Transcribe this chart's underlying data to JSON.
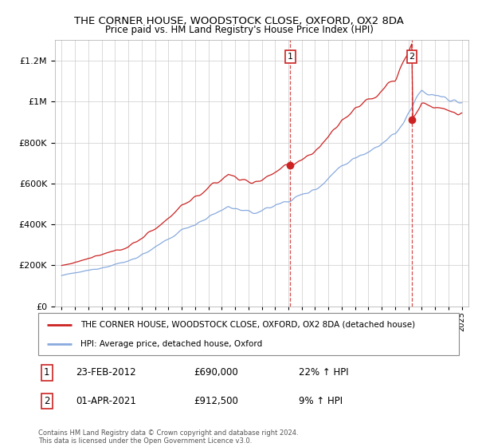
{
  "title": "THE CORNER HOUSE, WOODSTOCK CLOSE, OXFORD, OX2 8DA",
  "subtitle": "Price paid vs. HM Land Registry's House Price Index (HPI)",
  "legend_label_red": "THE CORNER HOUSE, WOODSTOCK CLOSE, OXFORD, OX2 8DA (detached house)",
  "legend_label_blue": "HPI: Average price, detached house, Oxford",
  "annotation1_date": "23-FEB-2012",
  "annotation1_price": "£690,000",
  "annotation1_hpi": "22% ↑ HPI",
  "annotation2_date": "01-APR-2021",
  "annotation2_price": "£912,500",
  "annotation2_hpi": "9% ↑ HPI",
  "footnote": "Contains HM Land Registry data © Crown copyright and database right 2024.\nThis data is licensed under the Open Government Licence v3.0.",
  "red_color": "#cc2222",
  "blue_color": "#88aadd",
  "marker1_x": 2012.15,
  "marker1_y": 690000,
  "marker2_x": 2021.25,
  "marker2_y": 912500,
  "ylim": [
    0,
    1300000
  ],
  "xlim": [
    1994.5,
    2025.5
  ]
}
